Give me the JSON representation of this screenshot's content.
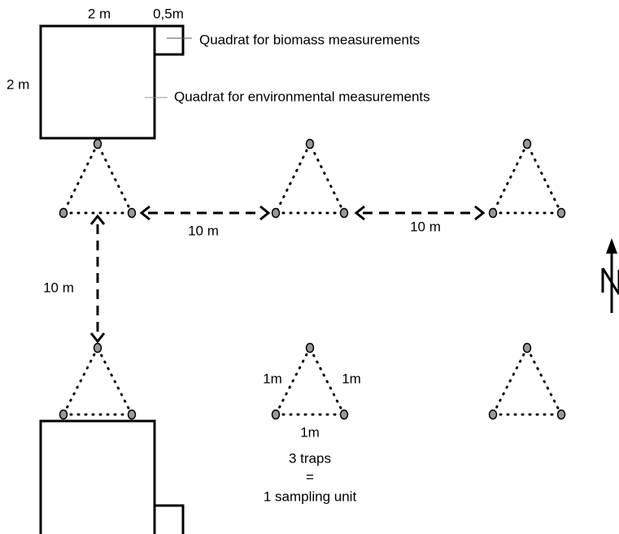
{
  "quadrat_labels": {
    "side_top": "2 m",
    "small_side": "0,5m",
    "side_left": "2 m",
    "biomass": "Quadrat for biomass measurements",
    "environmental": "Quadrat for environmental measurements"
  },
  "distances": {
    "horizontal_1": "10 m",
    "horizontal_2": "10 m",
    "vertical": "10 m"
  },
  "trap_sides": {
    "left": "1m",
    "right": "1m",
    "bottom": "1m"
  },
  "legend": {
    "line1": "3 traps",
    "line2": "=",
    "line3": "1 sampling unit"
  }
}
